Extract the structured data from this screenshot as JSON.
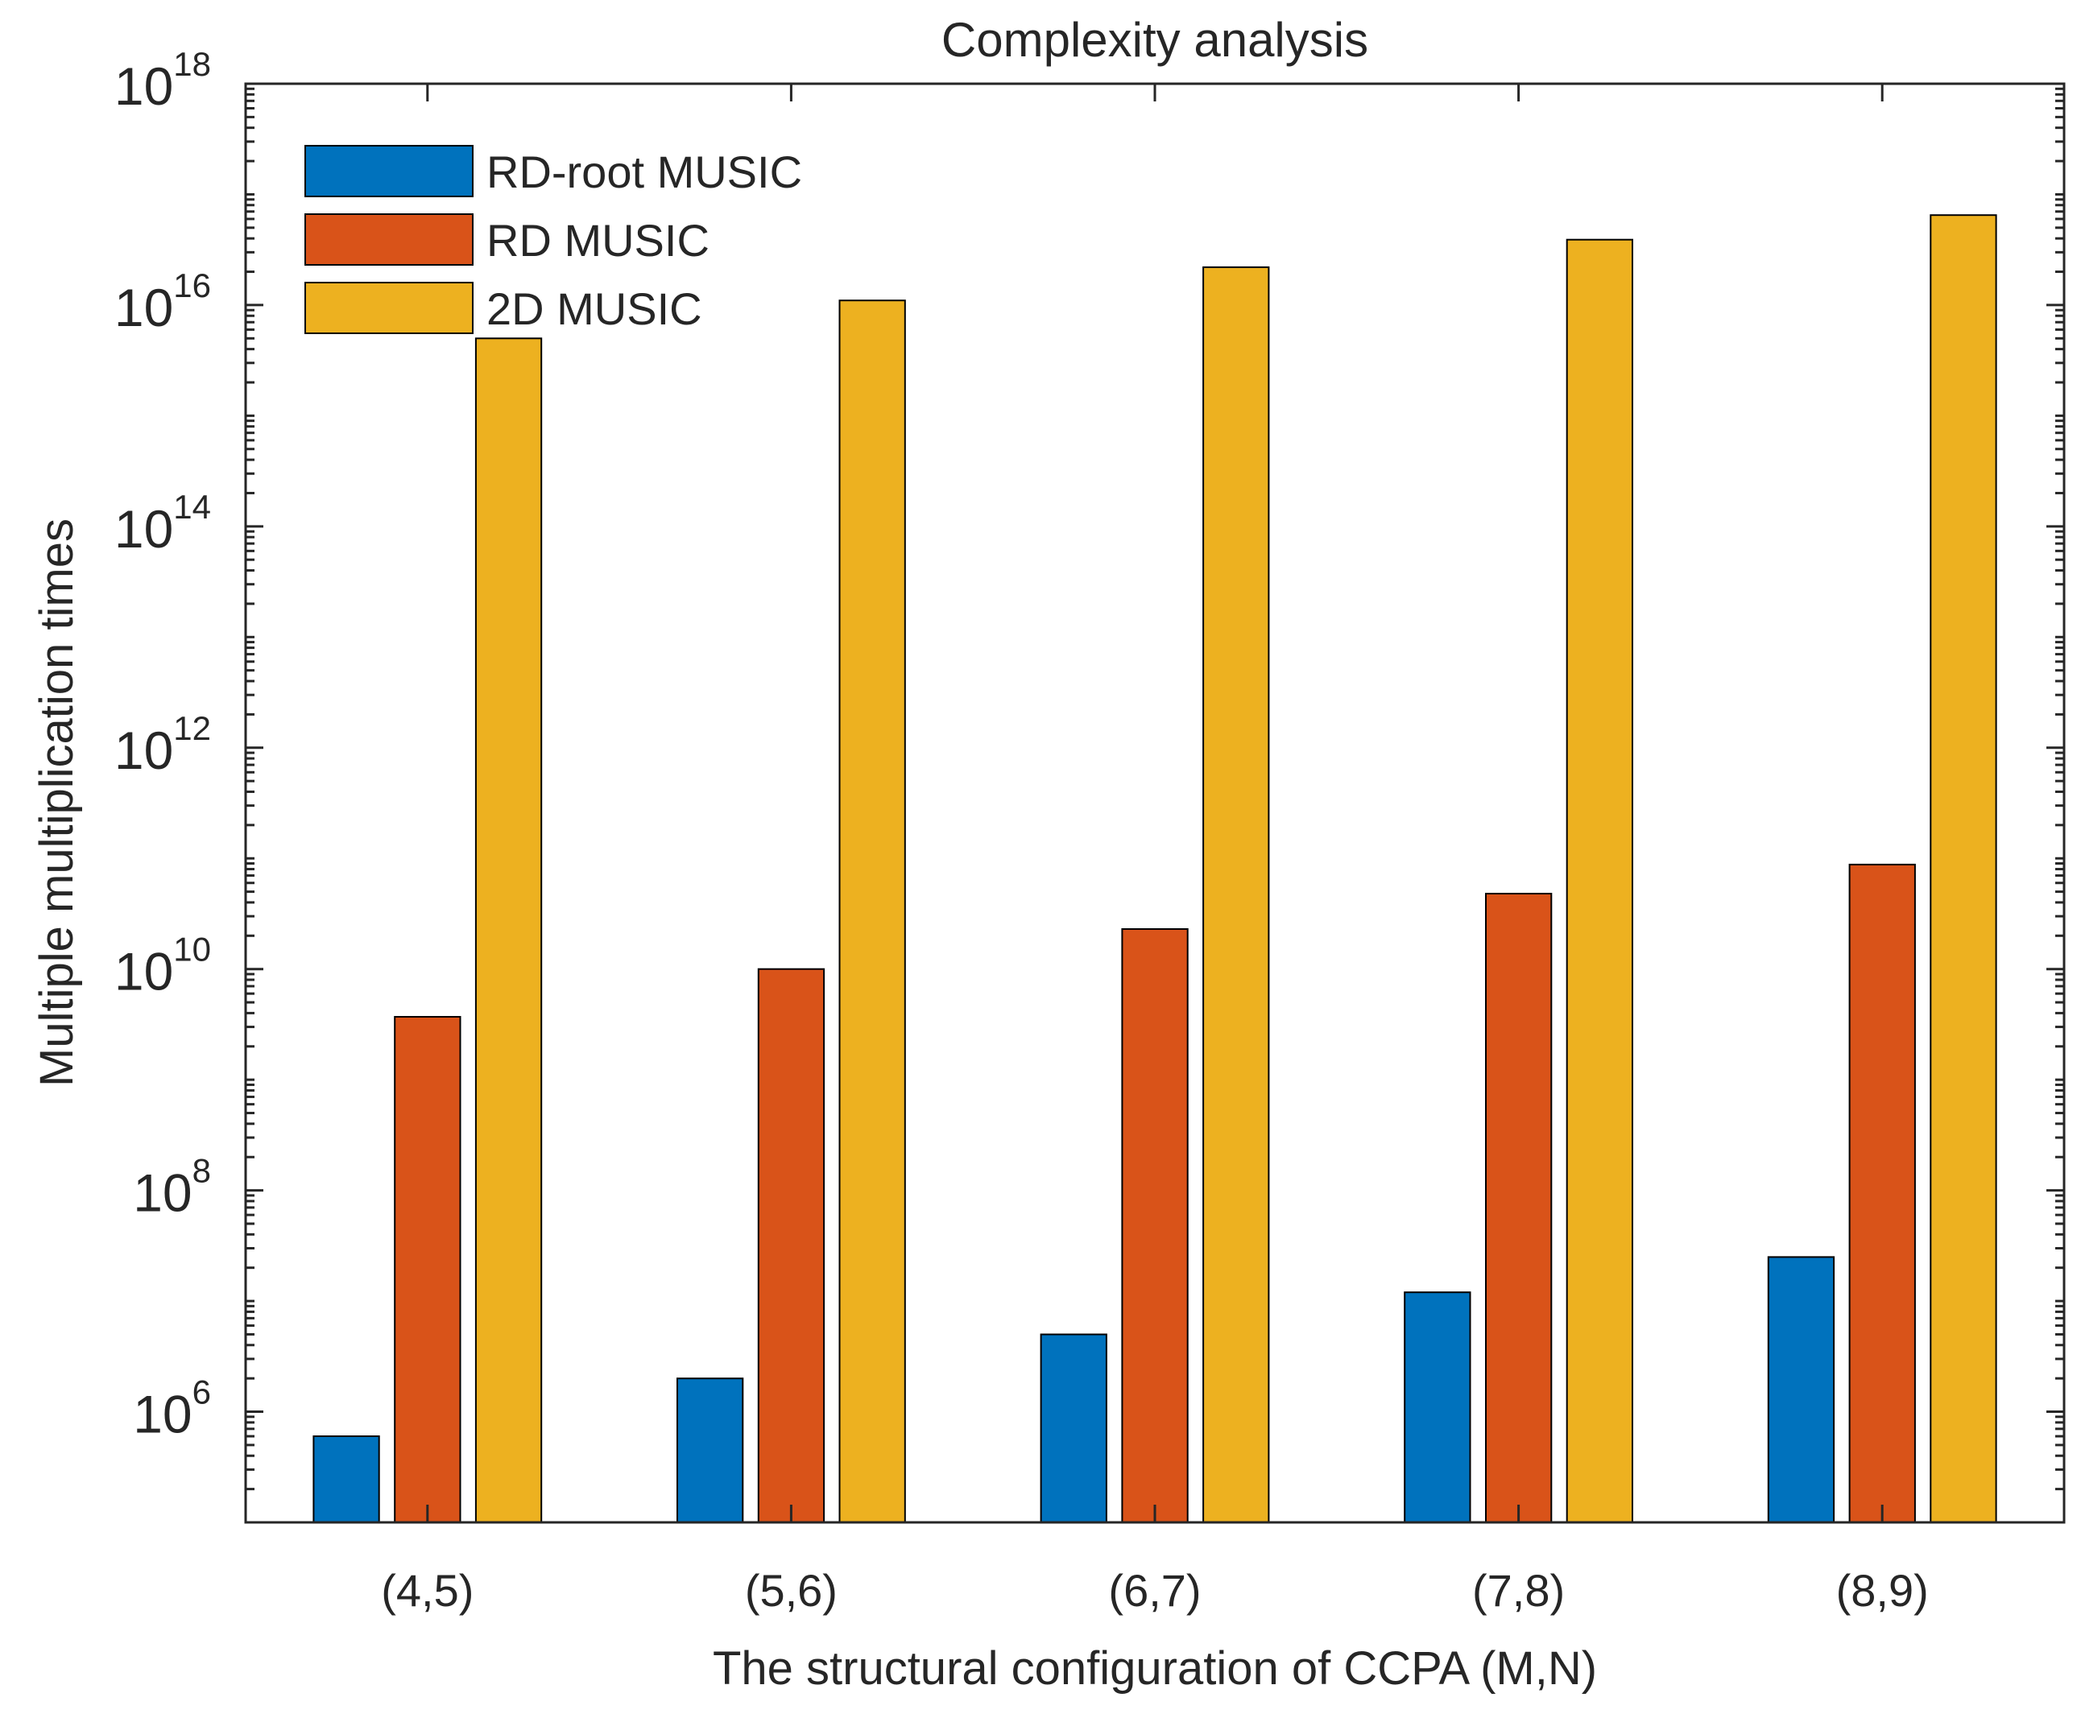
{
  "chart_data": {
    "type": "bar",
    "title": "Complexity analysis",
    "xlabel": "The structural configuration of CCPA (M,N)",
    "ylabel": "Multiple multiplication times",
    "yscale": "log",
    "ylim": [
      100000,
      1e+18
    ],
    "grid": false,
    "legend_position": "top-left",
    "categories": [
      "(4,5)",
      "(5,6)",
      "(6,7)",
      "(7,8)",
      "(8,9)"
    ],
    "y_ticks": [
      {
        "base": "10",
        "exp": "6",
        "value": 1000000.0
      },
      {
        "base": "10",
        "exp": "8",
        "value": 100000000.0
      },
      {
        "base": "10",
        "exp": "10",
        "value": 10000000000.0
      },
      {
        "base": "10",
        "exp": "12",
        "value": 1000000000000.0
      },
      {
        "base": "10",
        "exp": "14",
        "value": 100000000000000.0
      },
      {
        "base": "10",
        "exp": "16",
        "value": 1e+16
      },
      {
        "base": "10",
        "exp": "18",
        "value": 1e+18
      }
    ],
    "series": [
      {
        "name": "RD-root MUSIC",
        "color": "#0072BD",
        "values": [
          600000,
          2000000,
          5000000,
          12000000,
          25000000
        ]
      },
      {
        "name": "RD MUSIC",
        "color": "#D95319",
        "values": [
          3700000000,
          10000000000,
          23000000000,
          48000000000,
          88000000000
        ]
      },
      {
        "name": "2D MUSIC",
        "color": "#EDB120",
        "values": [
          5000000000000000,
          11000000000000000,
          22000000000000000,
          39000000000000000,
          65000000000000000
        ]
      }
    ]
  }
}
